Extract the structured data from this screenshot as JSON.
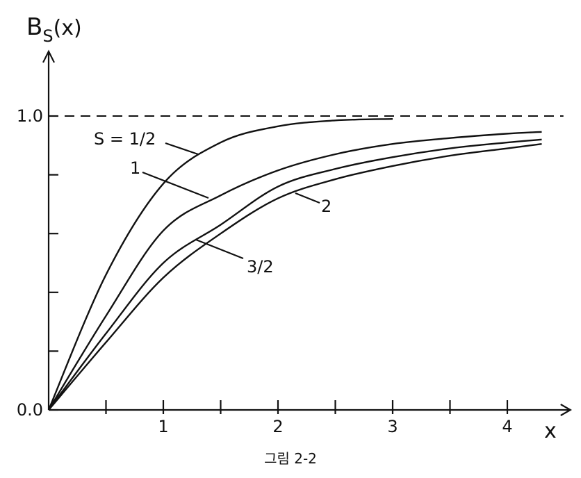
{
  "chart_data": {
    "type": "line",
    "ylabel": [
      "B",
      "S",
      "(x)"
    ],
    "xlabel": "x",
    "caption": "그림 2-2",
    "x": [
      0,
      0.5,
      1,
      1.5,
      2,
      2.5,
      3,
      3.5,
      4,
      4.3
    ],
    "series": [
      {
        "name": "S = 1/2",
        "color": "#111111",
        "values": [
          0,
          0.46,
          0.77,
          0.91,
          0.965,
          0.985,
          0.99,
          null,
          null,
          null
        ]
      },
      {
        "name": "1",
        "color": "#111111",
        "values": [
          0,
          0.32,
          0.61,
          0.73,
          0.815,
          0.87,
          0.905,
          0.925,
          0.94,
          0.946
        ]
      },
      {
        "name": "3/2",
        "color": "#111111",
        "values": [
          0,
          0.26,
          0.5,
          0.63,
          0.76,
          0.82,
          0.86,
          0.89,
          0.91,
          0.92
        ]
      },
      {
        "name": "2",
        "color": "#111111",
        "values": [
          0,
          0.23,
          0.45,
          0.6,
          0.72,
          0.785,
          0.83,
          0.865,
          0.89,
          0.905
        ]
      }
    ],
    "xlim": [
      0,
      4.55
    ],
    "ylim": [
      0,
      1.22
    ],
    "xticks": [
      1,
      2,
      3,
      4
    ],
    "xminor_ticks": [
      0.5,
      1.5,
      2.5,
      3.5
    ],
    "yticks": [
      {
        "value": 0,
        "label": "0.0"
      },
      {
        "value": 1,
        "label": "1.0"
      }
    ],
    "yminor_ticks": [
      0.2,
      0.4,
      0.6,
      0.8
    ],
    "reference_line": 1
  }
}
